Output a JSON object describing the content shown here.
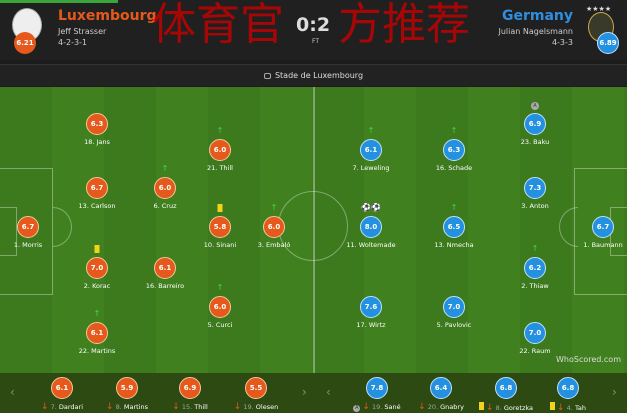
{
  "header": {
    "home": {
      "name": "Luxembourg",
      "manager": "Jeff Strasser",
      "formation": "4-2-3-1",
      "rating": "6.21",
      "color": "#e55a1c"
    },
    "away": {
      "name": "Germany",
      "manager": "Julian Nagelsmann",
      "formation": "4-3-3",
      "rating": "6.89",
      "color": "#2491e0"
    },
    "score": "0:2",
    "status": "FT"
  },
  "venue": {
    "icon": "stadium-icon",
    "name": "Stade de Luxembourg"
  },
  "watermark": "体育官方推荐",
  "brand": "WhoScored.com",
  "home_players": [
    {
      "num": "18.",
      "name": "Jans",
      "rating": "6.3"
    },
    {
      "num": "13.",
      "name": "Carlson",
      "rating": "6.7"
    },
    {
      "num": "6.",
      "name": "Cruz",
      "rating": "6.0",
      "sub_off": true
    },
    {
      "num": "21.",
      "name": "Thill",
      "rating": "6.0",
      "sub_off": true
    },
    {
      "num": "1.",
      "name": "Morris",
      "rating": "6.7"
    },
    {
      "num": "10.",
      "name": "Sinani",
      "rating": "5.8",
      "yellow": true
    },
    {
      "num": "3.",
      "name": "Embaló",
      "rating": "6.0",
      "sub_off": true
    },
    {
      "num": "2.",
      "name": "Korac",
      "rating": "7.0",
      "yellow": true
    },
    {
      "num": "16.",
      "name": "Barreiro",
      "rating": "6.1"
    },
    {
      "num": "5.",
      "name": "Curci",
      "rating": "6.0",
      "sub_off": true
    },
    {
      "num": "22.",
      "name": "Martins",
      "rating": "6.1",
      "sub_off": true
    }
  ],
  "away_players": [
    {
      "num": "23.",
      "name": "Baku",
      "rating": "6.9",
      "assist": "A"
    },
    {
      "num": "7.",
      "name": "Leweling",
      "rating": "6.1",
      "sub_off": true
    },
    {
      "num": "16.",
      "name": "Schade",
      "rating": "6.3",
      "sub_off": true
    },
    {
      "num": "3.",
      "name": "Anton",
      "rating": "7.3"
    },
    {
      "num": "11.",
      "name": "Woltemade",
      "rating": "8.0",
      "goals": 2
    },
    {
      "num": "13.",
      "name": "Nmecha",
      "rating": "6.5",
      "sub_off": true
    },
    {
      "num": "1.",
      "name": "Baumann",
      "rating": "6.7"
    },
    {
      "num": "2.",
      "name": "Thiaw",
      "rating": "6.2",
      "sub_off": true
    },
    {
      "num": "17.",
      "name": "Wirtz",
      "rating": "7.6"
    },
    {
      "num": "5.",
      "name": "Pavlovic",
      "rating": "7.0"
    },
    {
      "num": "22.",
      "name": "Raum",
      "rating": "7.0"
    }
  ],
  "home_subs": [
    {
      "num": "7.",
      "name": "Dardari",
      "rating": "6.1"
    },
    {
      "num": "8.",
      "name": "Martins",
      "rating": "5.9"
    },
    {
      "num": "15.",
      "name": "Thill",
      "rating": "6.9"
    },
    {
      "num": "19.",
      "name": "Olesen",
      "rating": "5.5"
    }
  ],
  "away_subs": [
    {
      "num": "19.",
      "name": "Sané",
      "rating": "7.8",
      "assist": "A"
    },
    {
      "num": "20.",
      "name": "Gnabry",
      "rating": "6.4"
    },
    {
      "num": "8.",
      "name": "Goretzka",
      "rating": "6.8",
      "yellow": true
    },
    {
      "num": "4.",
      "name": "Tah",
      "rating": "6.8",
      "yellow": true
    }
  ]
}
